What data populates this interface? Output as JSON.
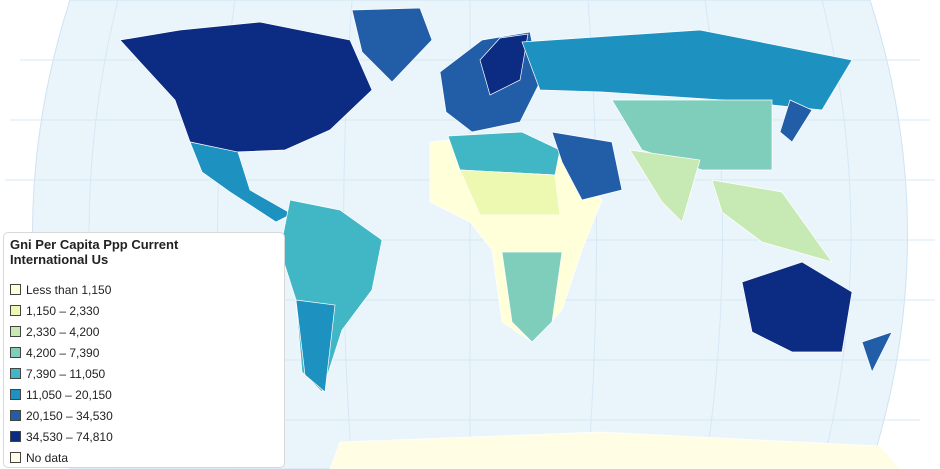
{
  "legend": {
    "title": "Gni Per Capita Ppp Current International Us",
    "items": [
      {
        "label": "Less than 1,150",
        "color": "#ffffd9"
      },
      {
        "label": "1,150 – 2,330",
        "color": "#edf8b1"
      },
      {
        "label": "2,330 – 4,200",
        "color": "#c7e9b4"
      },
      {
        "label": "4,200 – 7,390",
        "color": "#7fcdbb"
      },
      {
        "label": "7,390 – 11,050",
        "color": "#41b6c4"
      },
      {
        "label": "11,050 – 20,150",
        "color": "#1d91c0"
      },
      {
        "label": "20,150 – 34,530",
        "color": "#225ea8"
      },
      {
        "label": "34,530 – 74,810",
        "color": "#0c2c84"
      },
      {
        "label": "No data",
        "color": "#fffde3"
      }
    ]
  }
}
